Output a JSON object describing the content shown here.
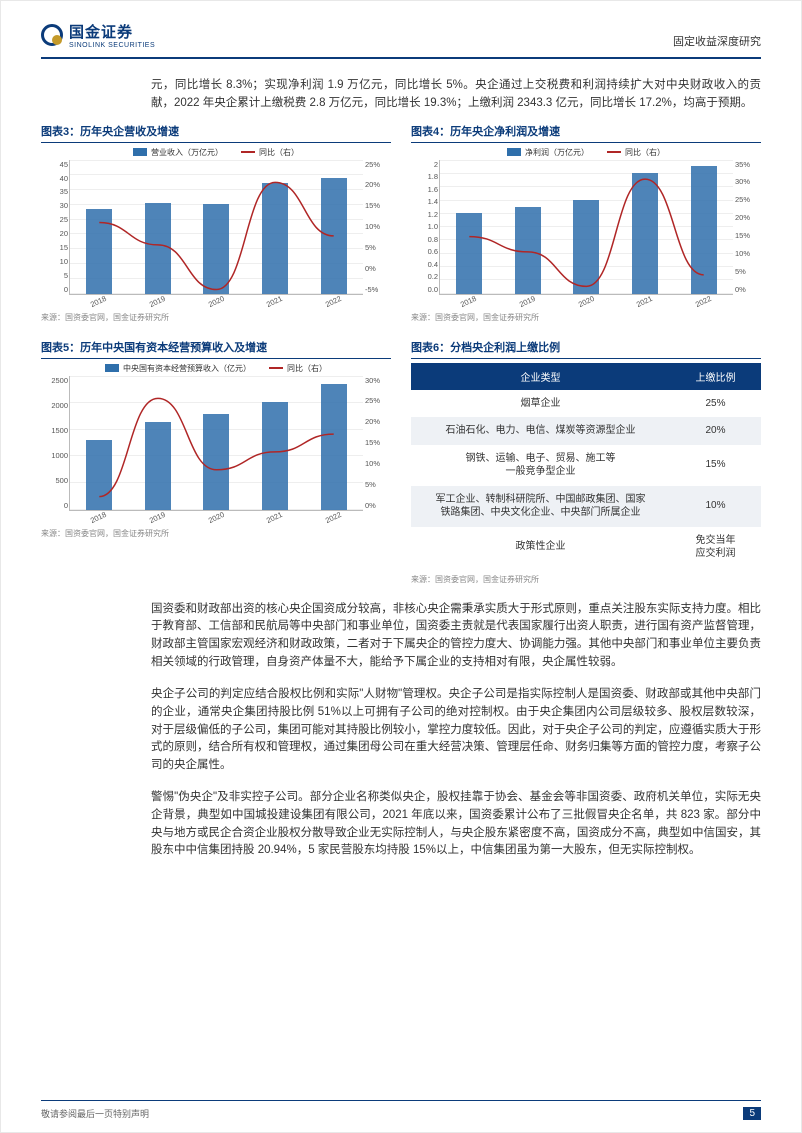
{
  "header": {
    "logo_cn": "国金证券",
    "logo_en": "SINOLINK SECURITIES",
    "doc_type": "固定收益深度研究"
  },
  "intro": "元，同比增长 8.3%；实现净利润 1.9 万亿元，同比增长 5%。央企通过上交税费和利润持续扩大对中央财政收入的贡献，2022 年央企累计上缴税费 2.8 万亿元，同比增长 19.3%；上缴利润 2343.3 亿元，同比增长 17.2%，均高于预期。",
  "chart3": {
    "title": "图表3：历年央企营收及增速",
    "legend_bar": "营业收入（万亿元）",
    "legend_line": "同比（右）",
    "categories": [
      "2018",
      "2019",
      "2020",
      "2021",
      "2022"
    ],
    "bar_values": [
      28.5,
      30.5,
      30.0,
      37.0,
      39.0
    ],
    "line_values_pct": [
      11,
      6,
      -4,
      20,
      8
    ],
    "y_left": {
      "min": 0,
      "max": 45,
      "step": 5
    },
    "y_right": {
      "min": -5,
      "max": 25,
      "step": 5
    },
    "bar_color": "#2f6fab",
    "line_color": "#b02626",
    "source": "来源：国资委官网，国金证券研究所"
  },
  "chart4": {
    "title": "图表4：历年央企净利润及增速",
    "legend_bar": "净利润（万亿元）",
    "legend_line": "同比（右）",
    "categories": [
      "2018",
      "2019",
      "2020",
      "2021",
      "2022"
    ],
    "bar_values": [
      1.2,
      1.3,
      1.4,
      1.8,
      1.9
    ],
    "line_values_pct": [
      15,
      11,
      2,
      30,
      5
    ],
    "y_left": {
      "min": 0,
      "max": 2.0,
      "step": 0.2
    },
    "y_right": {
      "min": 0,
      "max": 35,
      "step": 5
    },
    "bar_color": "#2f6fab",
    "line_color": "#b02626",
    "source": "来源：国资委官网，国金证券研究所"
  },
  "chart5": {
    "title": "图表5：历年中央国有资本经营预算收入及增速",
    "legend_bar": "中央国有资本经营预算收入（亿元）",
    "legend_line": "同比（右）",
    "categories": [
      "2018",
      "2019",
      "2020",
      "2021",
      "2022"
    ],
    "bar_values": [
      1300,
      1640,
      1780,
      2000,
      2340
    ],
    "line_values_pct": [
      3,
      25,
      9,
      13,
      17
    ],
    "y_left": {
      "min": 0,
      "max": 2500,
      "step": 500
    },
    "y_right": {
      "min": 0,
      "max": 30,
      "step": 5
    },
    "bar_color": "#2f6fab",
    "line_color": "#b02626",
    "source": "来源：国资委官网，国金证券研究所"
  },
  "chart6": {
    "title": "图表6：分档央企利润上缴比例",
    "header_type": "企业类型",
    "header_ratio": "上缴比例",
    "rows": [
      {
        "type": "烟草企业",
        "ratio": "25%"
      },
      {
        "type": "石油石化、电力、电信、煤炭等资源型企业",
        "ratio": "20%"
      },
      {
        "type": "钢铁、运输、电子、贸易、施工等\n一般竞争型企业",
        "ratio": "15%"
      },
      {
        "type": "军工企业、转制科研院所、中国邮政集团、国家\n铁路集团、中央文化企业、中央部门所属企业",
        "ratio": "10%"
      },
      {
        "type": "政策性企业",
        "ratio": "免交当年\n应交利润"
      }
    ],
    "source": "来源：国资委官网，国金证券研究所"
  },
  "para1": "国资委和财政部出资的核心央企国资成分较高，非核心央企需秉承实质大于形式原则，重点关注股东实际支持力度。相比于教育部、工信部和民航局等中央部门和事业单位，国资委主责就是代表国家履行出资人职责，进行国有资产监督管理，财政部主管国家宏观经济和财政政策，二者对于下属央企的管控力度大、协调能力强。其他中央部门和事业单位主要负责相关领域的行政管理，自身资产体量不大，能给予下属企业的支持相对有限，央企属性较弱。",
  "para2": "央企子公司的判定应结合股权比例和实际\"人财物\"管理权。央企子公司是指实际控制人是国资委、财政部或其他中央部门的企业，通常央企集团持股比例 51%以上可拥有子公司的绝对控制权。由于央企集团内公司层级较多、股权层数较深，对于层级偏低的子公司，集团可能对其持股比例较小，掌控力度较低。因此，对于央企子公司的判定，应遵循实质大于形式的原则，结合所有权和管理权，通过集团母公司在重大经营决策、管理层任命、财务归集等方面的管控力度，考察子公司的央企属性。",
  "para3": "警惕\"伪央企\"及非实控子公司。部分企业名称类似央企，股权挂靠于协会、基金会等非国资委、政府机关单位，实际无央企背景，典型如中国城投建设集团有限公司，2021 年底以来，国资委累计公布了三批假冒央企名单，共 823 家。部分中央与地方或民企合资企业股权分散导致企业无实际控制人，与央企股东紧密度不高，国资成分不高，典型如中信国安，其股东中中信集团持股 20.94%，5 家民营股东均持股 15%以上，中信集团虽为第一大股东，但无实际控制权。",
  "footer": {
    "disclaimer": "敬请参阅最后一页特别声明",
    "page": "5"
  }
}
